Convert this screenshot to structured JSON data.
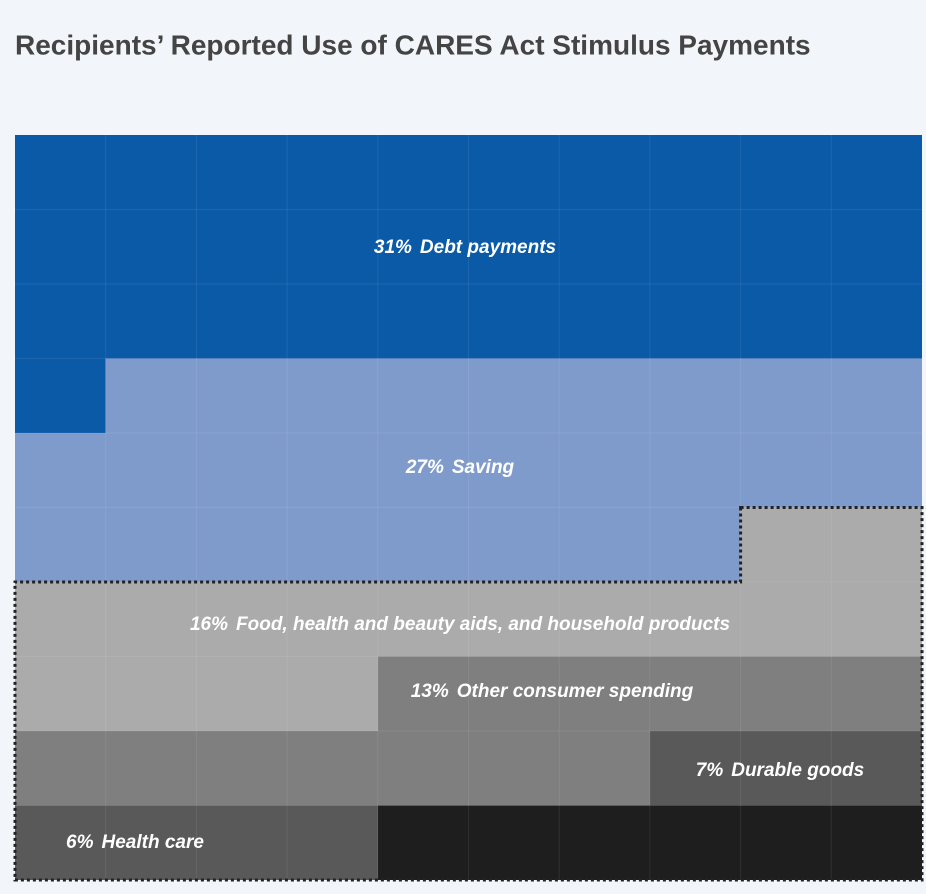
{
  "chart_data": {
    "type": "waffle",
    "title": "Recipients’ Reported Use of CARES Act Stimulus Payments",
    "categories": [
      "Debt payments",
      "Saving",
      "Food, health and beauty aids, and household products",
      "Other consumer spending",
      "Durable goods",
      "Health care"
    ],
    "values": [
      31,
      27,
      16,
      13,
      7,
      6
    ],
    "value_labels": [
      "31%",
      "27%",
      "16%",
      "13%",
      "7%",
      "6%"
    ],
    "colors": [
      "#0b5aa7",
      "#7f9bcc",
      "#ababab",
      "#7f7f7f",
      "#595959",
      "#1e1e1e"
    ]
  }
}
